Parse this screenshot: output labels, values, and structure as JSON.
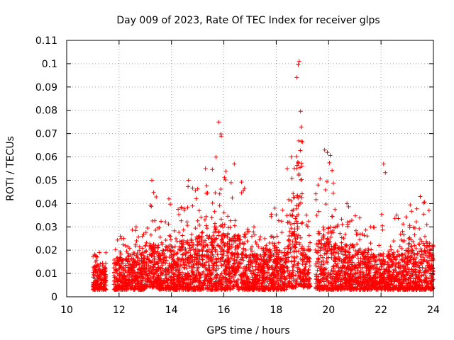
{
  "chart_data": {
    "type": "scatter",
    "title": "Day 009 of 2023, Rate Of TEC Index for receiver glps",
    "xlabel": "GPS time / hours",
    "ylabel": "ROTI / TECUs",
    "xlim": [
      10,
      24
    ],
    "ylim": [
      0,
      0.11
    ],
    "x_ticks": [
      10,
      12,
      14,
      16,
      18,
      20,
      22,
      24
    ],
    "x_tick_labels": [
      "10",
      "12",
      "14",
      "16",
      "18",
      "20",
      "22",
      "24"
    ],
    "y_ticks": [
      0,
      0.01,
      0.02,
      0.03,
      0.04,
      0.05,
      0.06,
      0.07,
      0.08,
      0.09,
      0.1,
      0.11
    ],
    "y_tick_labels": [
      "0",
      "0.01",
      "0.02",
      "0.03",
      "0.04",
      "0.05",
      "0.06",
      "0.07",
      "0.08",
      "0.09",
      "0.1",
      "0.11"
    ],
    "grid": true,
    "marker": "+",
    "color": "#ff0000",
    "series": [
      {
        "name": "ROTI",
        "segments": [
          {
            "x_start": 11.0,
            "x_end": 11.5,
            "base_min": 0.003,
            "base_max": 0.013,
            "peak": 0.019
          },
          {
            "x_start": 11.8,
            "x_end": 12.3,
            "base_min": 0.003,
            "base_max": 0.016,
            "peak": 0.026
          },
          {
            "x_start": 12.3,
            "x_end": 13.0,
            "base_min": 0.003,
            "base_max": 0.018,
            "peak": 0.03
          },
          {
            "x_start": 13.0,
            "x_end": 13.5,
            "base_min": 0.004,
            "base_max": 0.022,
            "peak": 0.05
          },
          {
            "x_start": 13.5,
            "x_end": 14.3,
            "base_min": 0.003,
            "base_max": 0.02,
            "peak": 0.042
          },
          {
            "x_start": 14.3,
            "x_end": 15.0,
            "base_min": 0.003,
            "base_max": 0.024,
            "peak": 0.05
          },
          {
            "x_start": 15.0,
            "x_end": 15.6,
            "base_min": 0.003,
            "base_max": 0.026,
            "peak": 0.055
          },
          {
            "x_start": 15.6,
            "x_end": 16.0,
            "base_min": 0.003,
            "base_max": 0.03,
            "peak": 0.075
          },
          {
            "x_start": 16.0,
            "x_end": 16.8,
            "base_min": 0.003,
            "base_max": 0.026,
            "peak": 0.057
          },
          {
            "x_start": 16.8,
            "x_end": 17.5,
            "base_min": 0.003,
            "base_max": 0.018,
            "peak": 0.03
          },
          {
            "x_start": 17.5,
            "x_end": 18.4,
            "base_min": 0.003,
            "base_max": 0.02,
            "peak": 0.038
          },
          {
            "x_start": 18.4,
            "x_end": 18.75,
            "base_min": 0.004,
            "base_max": 0.035,
            "peak": 0.06
          },
          {
            "x_start": 18.75,
            "x_end": 19.0,
            "base_min": 0.005,
            "base_max": 0.06,
            "peak": 0.101
          },
          {
            "x_start": 19.0,
            "x_end": 19.3,
            "base_min": 0.004,
            "base_max": 0.02,
            "peak": 0.035
          },
          {
            "x_start": 19.5,
            "x_end": 20.2,
            "base_min": 0.003,
            "base_max": 0.028,
            "peak": 0.063
          },
          {
            "x_start": 20.2,
            "x_end": 21.2,
            "base_min": 0.003,
            "base_max": 0.022,
            "peak": 0.04
          },
          {
            "x_start": 21.2,
            "x_end": 22.0,
            "base_min": 0.003,
            "base_max": 0.018,
            "peak": 0.03
          },
          {
            "x_start": 22.0,
            "x_end": 22.2,
            "base_min": 0.003,
            "base_max": 0.016,
            "peak": 0.057
          },
          {
            "x_start": 22.2,
            "x_end": 23.0,
            "base_min": 0.003,
            "base_max": 0.018,
            "peak": 0.035
          },
          {
            "x_start": 23.0,
            "x_end": 24.0,
            "base_min": 0.003,
            "base_max": 0.022,
            "peak": 0.043
          }
        ]
      }
    ]
  }
}
